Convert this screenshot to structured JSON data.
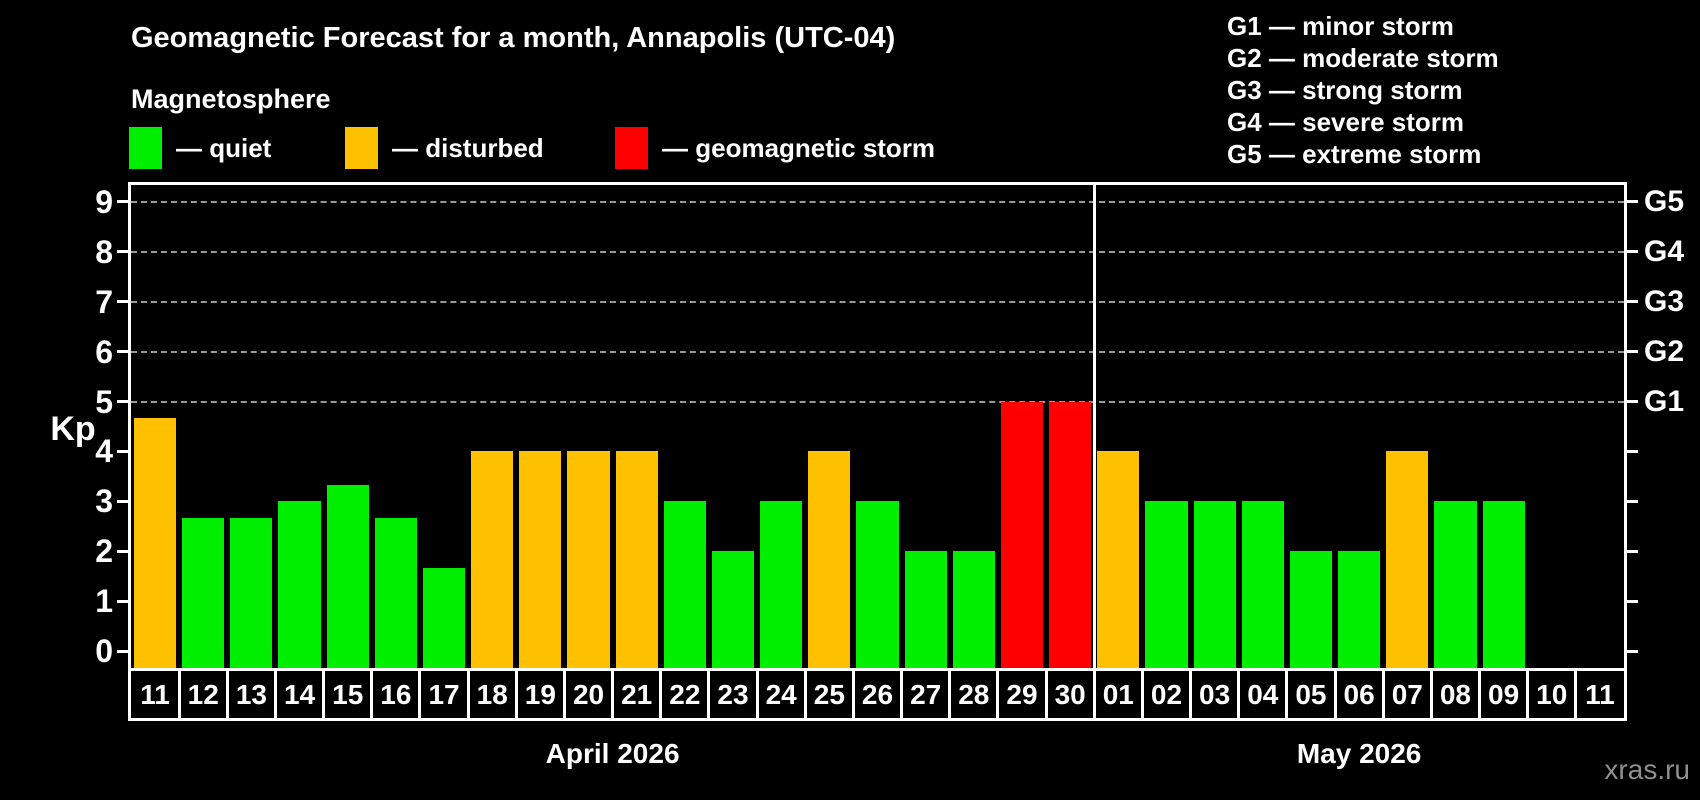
{
  "title": "Geomagnetic Forecast for a month, Annapolis (UTC-04)",
  "subtitle": "Magnetosphere",
  "legend": {
    "items": [
      {
        "label": "— quiet",
        "kind": "quiet",
        "color": "#00ee00"
      },
      {
        "label": "— disturbed",
        "kind": "disturbed",
        "color": "#ffc000"
      },
      {
        "label": "— geomagnetic storm",
        "kind": "storm",
        "color": "#ff0000"
      }
    ]
  },
  "storm_scale": [
    "G1 — minor storm",
    "G2 — moderate storm",
    "G3 — strong storm",
    "G4 — severe storm",
    "G5 — extreme storm"
  ],
  "watermark": "xras.ru",
  "chart_data": {
    "type": "bar",
    "ylabel": "Kp",
    "yticks": [
      0,
      1,
      2,
      3,
      4,
      5,
      6,
      7,
      8,
      9
    ],
    "ylim": [
      -0.35,
      9.35
    ],
    "gridlines_at": [
      5,
      6,
      7,
      8,
      9
    ],
    "legend_position": "top",
    "right_axis": [
      {
        "value": 5,
        "label": "G1"
      },
      {
        "value": 6,
        "label": "G2"
      },
      {
        "value": 7,
        "label": "G3"
      },
      {
        "value": 8,
        "label": "G4"
      },
      {
        "value": 9,
        "label": "G5"
      }
    ],
    "palette": {
      "quiet": "#00ee00",
      "disturbed": "#ffc000",
      "storm": "#ff0000"
    },
    "months": [
      {
        "label": "April 2026",
        "days": [
          "11",
          "12",
          "13",
          "14",
          "15",
          "16",
          "17",
          "18",
          "19",
          "20",
          "21",
          "22",
          "23",
          "24",
          "25",
          "26",
          "27",
          "28",
          "29",
          "30"
        ],
        "values": [
          4.67,
          2.67,
          2.67,
          3,
          3.33,
          2.67,
          1.67,
          4,
          4,
          4,
          4,
          3,
          2,
          3,
          4,
          3,
          2,
          2,
          5,
          5
        ],
        "kinds": [
          "disturbed",
          "quiet",
          "quiet",
          "quiet",
          "quiet",
          "quiet",
          "quiet",
          "disturbed",
          "disturbed",
          "disturbed",
          "disturbed",
          "quiet",
          "quiet",
          "quiet",
          "disturbed",
          "quiet",
          "quiet",
          "quiet",
          "storm",
          "storm"
        ]
      },
      {
        "label": "May 2026",
        "days": [
          "01",
          "02",
          "03",
          "04",
          "05",
          "06",
          "07",
          "08",
          "09",
          "10",
          "11"
        ],
        "values": [
          4,
          3,
          3,
          3,
          2,
          2,
          4,
          3,
          3,
          null,
          null
        ],
        "kinds": [
          "disturbed",
          "quiet",
          "quiet",
          "quiet",
          "quiet",
          "quiet",
          "disturbed",
          "quiet",
          "quiet",
          null,
          null
        ]
      }
    ]
  }
}
